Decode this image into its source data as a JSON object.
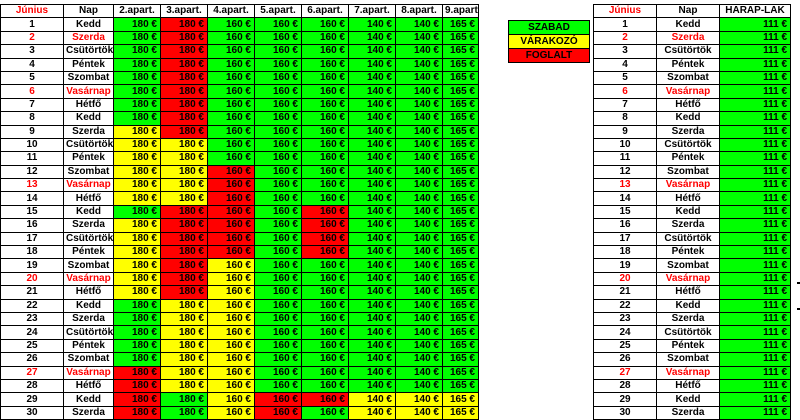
{
  "main": {
    "headers": [
      "Június",
      "Nap",
      "2.apart.",
      "3.apart.",
      "4.apart.",
      "5.apart.",
      "6.apart.",
      "7.apart.",
      "8.apart.",
      "9.apart."
    ],
    "prices": [
      "180 €",
      "180 €",
      "160 €",
      "160 €",
      "160 €",
      "140 €",
      "140 €",
      "165 €"
    ],
    "days": [
      "1",
      "2",
      "3",
      "4",
      "5",
      "6",
      "7",
      "8",
      "9",
      "10",
      "11",
      "12",
      "13",
      "14",
      "15",
      "16",
      "17",
      "18",
      "19",
      "20",
      "21",
      "22",
      "23",
      "24",
      "25",
      "26",
      "27",
      "28",
      "29",
      "30"
    ],
    "day_names": [
      "Kedd",
      "Szerda",
      "Csütörtök",
      "Péntek",
      "Szombat",
      "Vasárnap",
      "Hétfő",
      "Kedd",
      "Szerda",
      "Csütörtök",
      "Péntek",
      "Szombat",
      "Vasárnap",
      "Hétfő",
      "Kedd",
      "Szerda",
      "Csütörtök",
      "Péntek",
      "Szombat",
      "Vasárnap",
      "Hétfő",
      "Kedd",
      "Szerda",
      "Csütörtök",
      "Péntek",
      "Szombat",
      "Vasárnap",
      "Hétfő",
      "Kedd",
      "Szerda"
    ],
    "red_rows": [
      2,
      6,
      13,
      20,
      27
    ],
    "status": [
      "GRGGGGGG",
      "GRGGGGGG",
      "GRGGGGGG",
      "GRGGGGGG",
      "GRGGGGGG",
      "GRGGGGGG",
      "GRGGGGGG",
      "GRGGGGGG",
      "YRGGGGGG",
      "YYGGGGGG",
      "YYGGGGGG",
      "YYRGGGGG",
      "YYRGGGGG",
      "YYRGGGGG",
      "GRRGRGGG",
      "YRRGRGGG",
      "YRRGRGGG",
      "YRRGRGGG",
      "YRYGGGGG",
      "YRYGGGGG",
      "YRYGGGGG",
      "GYYGGGGG",
      "GYYGGGGG",
      "GYYGGGGG",
      "GYYGGGGG",
      "GYYGGGGG",
      "RYYGGGGG",
      "RYYGGGGG",
      "RGYRRYYY",
      "RGYRGYYY"
    ]
  },
  "legend": {
    "items": [
      {
        "label": "SZABAD",
        "color": "#00ff00"
      },
      {
        "label": "VÁRAKOZÓ",
        "color": "#ffff00"
      },
      {
        "label": "FOGLALT",
        "color": "#ff0000"
      }
    ]
  },
  "right": {
    "headers": [
      "Június",
      "Nap",
      "HARAP-LAK"
    ],
    "price": "111 €"
  },
  "colors": {
    "free": "#00ff00",
    "waiting": "#ffff00",
    "booked": "#ff0000",
    "sunday_text": "#ff0000"
  }
}
